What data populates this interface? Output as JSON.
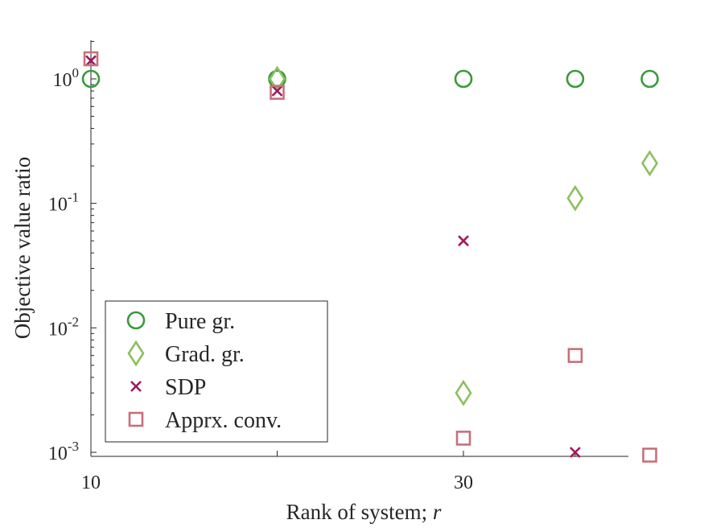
{
  "chart_data": {
    "type": "scatter",
    "xlabel": "Rank of system; ",
    "xlabel_var": "r",
    "ylabel": "Objective value ratio",
    "yscale": "log",
    "xlim": [
      10,
      39
    ],
    "ylim": [
      0.00092,
      2.2
    ],
    "xticks": [
      {
        "value": 10,
        "label": "10"
      },
      {
        "value": 30,
        "label": "30"
      }
    ],
    "yticks": [
      {
        "value": 1,
        "base": "10",
        "exp": "0"
      },
      {
        "value": 0.1,
        "base": "10",
        "exp": "-1"
      },
      {
        "value": 0.01,
        "base": "10",
        "exp": "-2"
      },
      {
        "value": 0.001,
        "base": "10",
        "exp": "-3"
      }
    ],
    "grid": false,
    "legend_position": "bottom-left",
    "series": [
      {
        "name": "Pure gr.",
        "marker": "circle",
        "color": "#3a9a3a",
        "x": [
          10,
          20,
          30,
          36,
          40
        ],
        "y": [
          1.0,
          1.0,
          1.0,
          1.0,
          1.0
        ]
      },
      {
        "name": "Grad. gr.",
        "marker": "diamond",
        "color": "#8cc060",
        "x": [
          20,
          30,
          36,
          40
        ],
        "y": [
          1.0,
          0.003,
          0.11,
          0.21
        ]
      },
      {
        "name": "SDP",
        "marker": "x",
        "color": "#a0195a",
        "x": [
          10,
          20,
          30,
          36
        ],
        "y": [
          1.4,
          0.8,
          0.05,
          0.001
        ]
      },
      {
        "name": "Apprx. conv.",
        "marker": "square",
        "color": "#c8707a",
        "x": [
          10,
          20,
          30,
          36,
          40
        ],
        "y": [
          1.45,
          0.78,
          0.0013,
          0.006,
          0.00095
        ]
      }
    ]
  }
}
